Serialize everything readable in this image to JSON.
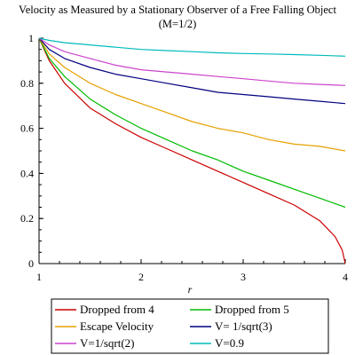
{
  "chart_data": {
    "type": "line",
    "title": "Velocity as Measured by a Stationary Observer of a Free Falling Object",
    "subtitle": "(M=1/2)",
    "xlabel": "r",
    "ylabel": "",
    "xlim": [
      1,
      4
    ],
    "ylim": [
      0,
      1
    ],
    "xticks": [
      "1",
      "2",
      "3",
      "4"
    ],
    "yticks": [
      "0",
      "0.2",
      "0.4",
      "0.6",
      "0.8",
      "1"
    ],
    "grid": false,
    "legend_position": "bottom",
    "series": [
      {
        "name": "Dropped from 4",
        "color": "#cc0000",
        "x": [
          1,
          1.1,
          1.25,
          1.5,
          1.75,
          2,
          2.25,
          2.5,
          2.75,
          3,
          3.25,
          3.5,
          3.75,
          3.9,
          3.97,
          4
        ],
        "y": [
          1,
          0.9,
          0.8,
          0.69,
          0.62,
          0.56,
          0.51,
          0.46,
          0.41,
          0.36,
          0.31,
          0.26,
          0.19,
          0.12,
          0.06,
          0
        ]
      },
      {
        "name": "Dropped from 5",
        "color": "#00bb00",
        "x": [
          1,
          1.1,
          1.25,
          1.5,
          1.75,
          2,
          2.25,
          2.5,
          2.75,
          3,
          3.25,
          3.5,
          3.75,
          4
        ],
        "y": [
          1,
          0.91,
          0.83,
          0.73,
          0.66,
          0.6,
          0.55,
          0.5,
          0.46,
          0.41,
          0.37,
          0.33,
          0.29,
          0.25
        ]
      },
      {
        "name": "Escape Velocity",
        "color": "#e6a000",
        "x": [
          1,
          1.1,
          1.25,
          1.5,
          1.75,
          2,
          2.25,
          2.5,
          2.75,
          3,
          3.25,
          3.5,
          3.75,
          4
        ],
        "y": [
          1,
          0.93,
          0.87,
          0.8,
          0.75,
          0.71,
          0.67,
          0.63,
          0.6,
          0.58,
          0.55,
          0.53,
          0.52,
          0.5
        ]
      },
      {
        "name": "V= 1/sqrt(3)",
        "color": "#000080",
        "x": [
          1,
          1.1,
          1.25,
          1.5,
          1.75,
          2,
          2.25,
          2.5,
          2.75,
          3,
          3.25,
          3.5,
          3.75,
          4
        ],
        "y": [
          1,
          0.95,
          0.91,
          0.87,
          0.84,
          0.82,
          0.8,
          0.78,
          0.76,
          0.75,
          0.74,
          0.73,
          0.72,
          0.71
        ]
      },
      {
        "name": "V=1/sqrt(2)",
        "color": "#cc44cc",
        "x": [
          1,
          1.1,
          1.25,
          1.5,
          1.75,
          2,
          2.25,
          2.5,
          2.75,
          3,
          3.25,
          3.5,
          3.75,
          4
        ],
        "y": [
          1,
          0.97,
          0.94,
          0.91,
          0.88,
          0.86,
          0.85,
          0.84,
          0.83,
          0.82,
          0.81,
          0.8,
          0.795,
          0.79
        ]
      },
      {
        "name": "V=0.9",
        "color": "#00bbbb",
        "x": [
          1,
          1.1,
          1.25,
          1.5,
          1.75,
          2,
          2.25,
          2.5,
          2.75,
          3,
          3.25,
          3.5,
          3.75,
          4
        ],
        "y": [
          1,
          0.99,
          0.98,
          0.97,
          0.96,
          0.95,
          0.945,
          0.94,
          0.935,
          0.932,
          0.93,
          0.927,
          0.924,
          0.92
        ]
      }
    ]
  }
}
